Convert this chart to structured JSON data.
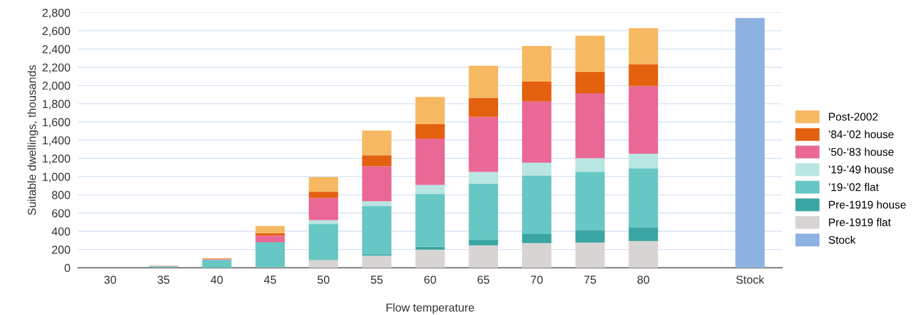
{
  "chart_data": {
    "type": "bar",
    "stacked": true,
    "xlabel": "Flow temperature",
    "ylabel": "Suitable dwellings, thousands",
    "categories": [
      "30",
      "35",
      "40",
      "45",
      "50",
      "55",
      "60",
      "65",
      "70",
      "75",
      "80",
      null,
      "Stock"
    ],
    "series": [
      {
        "name": "Stock",
        "color": "#8db2e0",
        "values": [
          null,
          null,
          null,
          null,
          null,
          null,
          null,
          null,
          null,
          null,
          null,
          null,
          2740
        ]
      },
      {
        "name": "Pre-1919 flat",
        "color": "#d8d4d3",
        "values": [
          0,
          0,
          0,
          5,
          85,
          133,
          198,
          246,
          271,
          276,
          293,
          null,
          null
        ]
      },
      {
        "name": "Pre-1919 house",
        "color": "#3aa6a3",
        "values": [
          0,
          5,
          null,
          5,
          5,
          17,
          33,
          62,
          105,
          138,
          151,
          null,
          null
        ]
      },
      {
        "name": "’19-’02 flat",
        "color": "#66c7c4",
        "values": [
          0,
          10,
          87,
          270,
          392,
          527,
          579,
          615,
          635,
          639,
          647,
          null,
          null
        ]
      },
      {
        "name": "’19-’49 house",
        "color": "#b9e5e3",
        "values": [
          0,
          2,
          null,
          null,
          40,
          53,
          98,
          128,
          143,
          149,
          160,
          null,
          null
        ]
      },
      {
        "name": "’50-’83 house",
        "color": "#ea6895",
        "values": [
          0,
          3,
          10,
          73,
          243,
          384,
          509,
          604,
          672,
          712,
          743,
          null,
          null
        ]
      },
      {
        "name": "’84-’02 house",
        "color": "#e3600f",
        "values": [
          0,
          1,
          null,
          27,
          70,
          120,
          158,
          211,
          216,
          233,
          241,
          null,
          null
        ]
      },
      {
        "name": "Post-2002",
        "color": "#f6b862",
        "values": [
          0,
          null,
          10,
          79,
          161,
          271,
          299,
          352,
          391,
          399,
          395,
          null,
          null
        ]
      }
    ],
    "ylim": [
      0,
      2800
    ],
    "yticks": [
      {
        "value": 0,
        "label": "0"
      },
      {
        "value": 200,
        "label": "200"
      },
      {
        "value": 400,
        "label": "400"
      },
      {
        "value": 600,
        "label": "600"
      },
      {
        "value": 800,
        "label": "800"
      },
      {
        "value": 1000,
        "label": "1,000"
      },
      {
        "value": 1200,
        "label": "1,200"
      },
      {
        "value": 1400,
        "label": "1,400"
      },
      {
        "value": 1600,
        "label": "1,600"
      },
      {
        "value": 1800,
        "label": "1,800"
      },
      {
        "value": 2000,
        "label": "2,000"
      },
      {
        "value": 2200,
        "label": "2,200"
      },
      {
        "value": 2400,
        "label": "2,400"
      },
      {
        "value": 2600,
        "label": "2,600"
      },
      {
        "value": 2800,
        "label": "2,800"
      }
    ],
    "grid": "y",
    "legend": "right"
  }
}
